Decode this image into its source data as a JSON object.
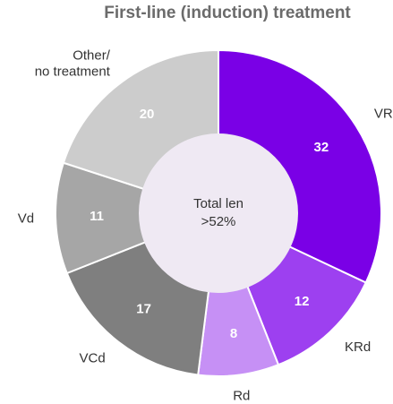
{
  "chart_data": {
    "type": "donut",
    "title": "First-line (induction) treatment",
    "categories": [
      "VRd",
      "KRd",
      "Rd",
      "VCd",
      "Vd",
      "Other/\nno treatment"
    ],
    "values": [
      32,
      12,
      8,
      17,
      11,
      20
    ],
    "colors": [
      "#7a00e6",
      "#9d40f0",
      "#c690f5",
      "#7f7f7f",
      "#a6a6a6",
      "#cccccc"
    ],
    "center_text": [
      "Total len",
      ">52%"
    ]
  }
}
